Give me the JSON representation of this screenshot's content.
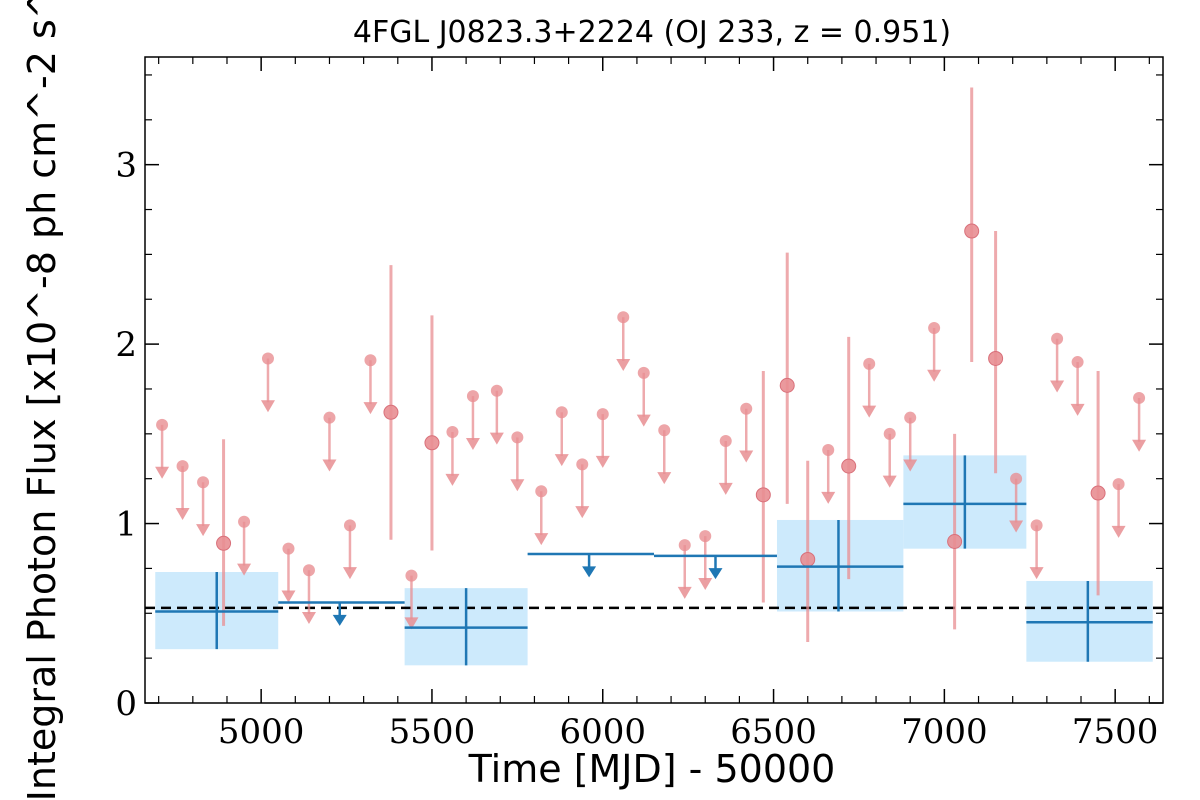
{
  "chart_data": {
    "type": "scatter",
    "title": "4FGL J0823.3+2224 (OJ 233, z = 0.951)",
    "xlabel": "Time [MJD] - 50000",
    "ylabel": "Integral Photon Flux [x10^-8 ph cm^-2 s^-1]",
    "xlim": [
      4660,
      7640
    ],
    "ylim": [
      0,
      3.6
    ],
    "x_ticks": [
      5000,
      5500,
      6000,
      6500,
      7000,
      7500
    ],
    "x_tick_labels": [
      "5000",
      "5500",
      "6000",
      "6500",
      "7000",
      "7500"
    ],
    "y_ticks": [
      0,
      1,
      2,
      3
    ],
    "y_tick_labels": [
      "0",
      "1",
      "2",
      "3"
    ],
    "reference_line": {
      "y": 0.53,
      "style": "dashed",
      "color": "#000000"
    },
    "colors": {
      "short_bins": "#e88e92",
      "long_bins": "#1f77b4",
      "long_bin_box": "#cdeafc"
    },
    "series": [
      {
        "bin": "short",
        "detections": [
          {
            "x": 4890,
            "y": 0.89,
            "ylow": 0.43,
            "yhigh": 1.47
          },
          {
            "x": 5380,
            "y": 1.62,
            "ylow": 0.91,
            "yhigh": 2.44
          },
          {
            "x": 5500,
            "y": 1.45,
            "ylow": 0.85,
            "yhigh": 2.16
          },
          {
            "x": 6470,
            "y": 1.16,
            "ylow": 0.56,
            "yhigh": 1.85
          },
          {
            "x": 6540,
            "y": 1.77,
            "ylow": 1.11,
            "yhigh": 2.51
          },
          {
            "x": 6600,
            "y": 0.8,
            "ylow": 0.34,
            "yhigh": 1.35
          },
          {
            "x": 6720,
            "y": 1.32,
            "ylow": 0.69,
            "yhigh": 2.04
          },
          {
            "x": 7030,
            "y": 0.9,
            "ylow": 0.41,
            "yhigh": 1.5
          },
          {
            "x": 7080,
            "y": 2.63,
            "ylow": 1.9,
            "yhigh": 3.43
          },
          {
            "x": 7150,
            "y": 1.92,
            "ylow": 1.28,
            "yhigh": 2.63
          },
          {
            "x": 7450,
            "y": 1.17,
            "ylow": 0.6,
            "yhigh": 1.85
          }
        ],
        "upper_limits": [
          {
            "x": 4710,
            "y": 1.55
          },
          {
            "x": 4770,
            "y": 1.32
          },
          {
            "x": 4830,
            "y": 1.23
          },
          {
            "x": 4950,
            "y": 1.01
          },
          {
            "x": 5020,
            "y": 1.92
          },
          {
            "x": 5080,
            "y": 0.86
          },
          {
            "x": 5140,
            "y": 0.74
          },
          {
            "x": 5200,
            "y": 1.59
          },
          {
            "x": 5260,
            "y": 0.99
          },
          {
            "x": 5320,
            "y": 1.91
          },
          {
            "x": 5440,
            "y": 0.71
          },
          {
            "x": 5560,
            "y": 1.51
          },
          {
            "x": 5620,
            "y": 1.71
          },
          {
            "x": 5690,
            "y": 1.74
          },
          {
            "x": 5750,
            "y": 1.48
          },
          {
            "x": 5820,
            "y": 1.18
          },
          {
            "x": 5880,
            "y": 1.62
          },
          {
            "x": 5940,
            "y": 1.33
          },
          {
            "x": 6000,
            "y": 1.61
          },
          {
            "x": 6060,
            "y": 2.15
          },
          {
            "x": 6120,
            "y": 1.84
          },
          {
            "x": 6180,
            "y": 1.52
          },
          {
            "x": 6240,
            "y": 0.88
          },
          {
            "x": 6300,
            "y": 0.93
          },
          {
            "x": 6360,
            "y": 1.46
          },
          {
            "x": 6420,
            "y": 1.64
          },
          {
            "x": 6660,
            "y": 1.41
          },
          {
            "x": 6780,
            "y": 1.89
          },
          {
            "x": 6840,
            "y": 1.5
          },
          {
            "x": 6900,
            "y": 1.59
          },
          {
            "x": 6970,
            "y": 2.09
          },
          {
            "x": 7210,
            "y": 1.25
          },
          {
            "x": 7270,
            "y": 0.99
          },
          {
            "x": 7330,
            "y": 2.03
          },
          {
            "x": 7390,
            "y": 1.9
          },
          {
            "x": 7510,
            "y": 1.22
          },
          {
            "x": 7570,
            "y": 1.7
          }
        ]
      },
      {
        "bin": "long",
        "detections": [
          {
            "x": 4870,
            "xlow": 4690,
            "xhigh": 5050,
            "y": 0.51,
            "ylow": 0.3,
            "yhigh": 0.73
          },
          {
            "x": 5600,
            "xlow": 5420,
            "xhigh": 5780,
            "y": 0.42,
            "ylow": 0.21,
            "yhigh": 0.64
          },
          {
            "x": 6690,
            "xlow": 6510,
            "xhigh": 6880,
            "y": 0.76,
            "ylow": 0.51,
            "yhigh": 1.02
          },
          {
            "x": 7060,
            "xlow": 6880,
            "xhigh": 7240,
            "y": 1.11,
            "ylow": 0.86,
            "yhigh": 1.38
          },
          {
            "x": 7420,
            "xlow": 7240,
            "xhigh": 7610,
            "y": 0.45,
            "ylow": 0.23,
            "yhigh": 0.68
          }
        ],
        "upper_limits": [
          {
            "x": 5230,
            "xlow": 5050,
            "xhigh": 5420,
            "y": 0.56
          },
          {
            "x": 5960,
            "xlow": 5780,
            "xhigh": 6150,
            "y": 0.83
          },
          {
            "x": 6330,
            "xlow": 6150,
            "xhigh": 6510,
            "y": 0.82
          }
        ]
      }
    ]
  }
}
